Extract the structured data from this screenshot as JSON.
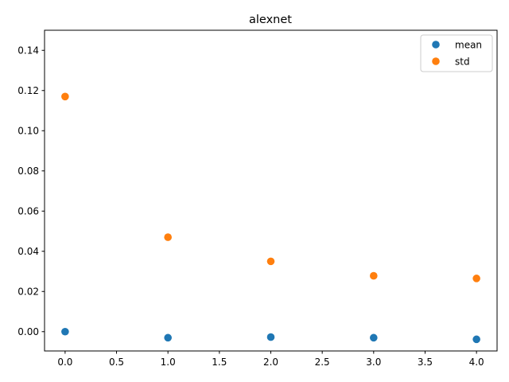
{
  "chart_data": {
    "type": "scatter",
    "title": "alexnet",
    "xlabel": "",
    "ylabel": "",
    "xlim": [
      -0.2,
      4.2
    ],
    "ylim": [
      -0.0096,
      0.15
    ],
    "xticks": [
      0.0,
      0.5,
      1.0,
      1.5,
      2.0,
      2.5,
      3.0,
      3.5,
      4.0
    ],
    "xtick_labels": [
      "0.0",
      "0.5",
      "1.0",
      "1.5",
      "2.0",
      "2.5",
      "3.0",
      "3.5",
      "4.0"
    ],
    "yticks": [
      0.0,
      0.02,
      0.04,
      0.06,
      0.08,
      0.1,
      0.12,
      0.14
    ],
    "ytick_labels": [
      "0.00",
      "0.02",
      "0.04",
      "0.06",
      "0.08",
      "0.10",
      "0.12",
      "0.14"
    ],
    "grid": false,
    "legend_position": "top-right",
    "x": [
      0,
      1,
      2,
      3,
      4
    ],
    "series": [
      {
        "name": "mean",
        "color": "#1f77b4",
        "values": [
          0.0,
          -0.003,
          -0.0027,
          -0.003,
          -0.0038
        ]
      },
      {
        "name": "std",
        "color": "#ff7f0e",
        "values": [
          0.117,
          0.047,
          0.035,
          0.0278,
          0.0265
        ]
      }
    ]
  }
}
